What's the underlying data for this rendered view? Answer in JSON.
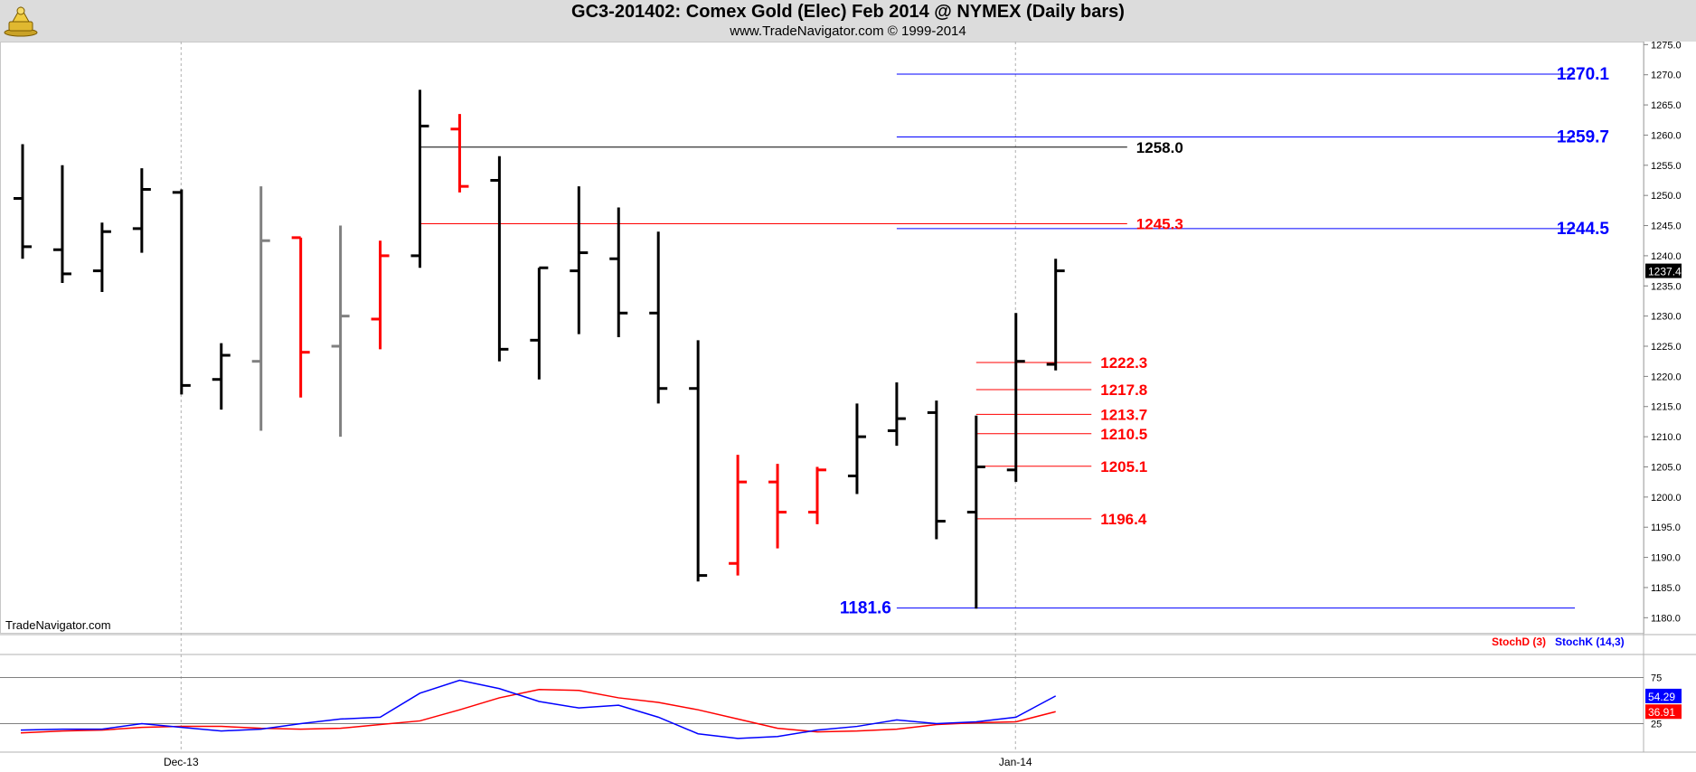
{
  "header": {
    "title": "GC3-201402:  Comex Gold (Elec) Feb 2014 @ NYMEX  (Daily bars)",
    "subtitle": "www.TradeNavigator.com © 1999-2014",
    "watermark": "TradeNavigator.com"
  },
  "chart_data": [
    {
      "type": "ohlc",
      "price_axis": {
        "min": 1177.5,
        "max": 1275.5,
        "ticks": [
          1275.0,
          1270.0,
          1265.0,
          1260.0,
          1255.0,
          1250.0,
          1245.0,
          1240.0,
          1235.0,
          1230.0,
          1225.0,
          1220.0,
          1215.0,
          1210.0,
          1205.0,
          1200.0,
          1195.0,
          1190.0,
          1185.0,
          1180.0
        ]
      },
      "x_axis": {
        "labels": [
          {
            "label": "Dec-13",
            "bar": 4
          },
          {
            "label": "Jan-14",
            "bar": 25
          }
        ],
        "grid": "vertical dashed at month starts"
      },
      "last_price_label": "1237.4",
      "bars": [
        {
          "o": 1249.5,
          "h": 1258.5,
          "l": 1239.5,
          "c": 1241.5,
          "color": "#000000"
        },
        {
          "o": 1241.0,
          "h": 1255.0,
          "l": 1235.5,
          "c": 1237.0,
          "color": "#000000"
        },
        {
          "o": 1237.5,
          "h": 1245.5,
          "l": 1234.0,
          "c": 1244.0,
          "color": "#000000"
        },
        {
          "o": 1244.5,
          "h": 1254.5,
          "l": 1240.5,
          "c": 1251.0,
          "color": "#000000"
        },
        {
          "o": 1250.5,
          "h": 1251.0,
          "l": 1217.0,
          "c": 1218.5,
          "color": "#000000"
        },
        {
          "o": 1219.5,
          "h": 1225.5,
          "l": 1214.5,
          "c": 1223.5,
          "color": "#000000"
        },
        {
          "o": 1222.5,
          "h": 1251.5,
          "l": 1211.0,
          "c": 1242.5,
          "color": "#808080"
        },
        {
          "o": 1243.0,
          "h": 1243.0,
          "l": 1216.5,
          "c": 1224.0,
          "color": "#ff0000"
        },
        {
          "o": 1225.0,
          "h": 1245.0,
          "l": 1210.0,
          "c": 1230.0,
          "color": "#808080"
        },
        {
          "o": 1229.5,
          "h": 1242.5,
          "l": 1224.5,
          "c": 1240.0,
          "color": "#ff0000"
        },
        {
          "o": 1240.0,
          "h": 1267.5,
          "l": 1238.0,
          "c": 1261.5,
          "color": "#000000"
        },
        {
          "o": 1261.0,
          "h": 1263.5,
          "l": 1250.5,
          "c": 1251.5,
          "color": "#ff0000"
        },
        {
          "o": 1252.5,
          "h": 1256.5,
          "l": 1222.5,
          "c": 1224.5,
          "color": "#000000"
        },
        {
          "o": 1226.0,
          "h": 1238.0,
          "l": 1219.5,
          "c": 1238.0,
          "color": "#000000"
        },
        {
          "o": 1237.5,
          "h": 1251.5,
          "l": 1227.0,
          "c": 1240.5,
          "color": "#000000"
        },
        {
          "o": 1239.5,
          "h": 1248.0,
          "l": 1226.5,
          "c": 1230.5,
          "color": "#000000"
        },
        {
          "o": 1230.5,
          "h": 1244.0,
          "l": 1215.5,
          "c": 1218.0,
          "color": "#000000"
        },
        {
          "o": 1218.0,
          "h": 1226.0,
          "l": 1186.0,
          "c": 1187.0,
          "color": "#000000"
        },
        {
          "o": 1189.0,
          "h": 1207.0,
          "l": 1187.0,
          "c": 1202.5,
          "color": "#ff0000"
        },
        {
          "o": 1202.5,
          "h": 1205.5,
          "l": 1191.5,
          "c": 1197.5,
          "color": "#ff0000"
        },
        {
          "o": 1197.5,
          "h": 1205.0,
          "l": 1195.5,
          "c": 1204.5,
          "color": "#ff0000"
        },
        {
          "o": 1203.5,
          "h": 1215.5,
          "l": 1200.5,
          "c": 1210.0,
          "color": "#000000"
        },
        {
          "o": 1211.0,
          "h": 1219.0,
          "l": 1208.5,
          "c": 1213.0,
          "color": "#000000"
        },
        {
          "o": 1214.0,
          "h": 1216.0,
          "l": 1193.0,
          "c": 1196.0,
          "color": "#000000"
        },
        {
          "o": 1197.5,
          "h": 1213.5,
          "l": 1181.5,
          "c": 1205.0,
          "color": "#000000"
        },
        {
          "o": 1204.5,
          "h": 1230.5,
          "l": 1202.5,
          "c": 1222.5,
          "color": "#000000"
        },
        {
          "o": 1222.0,
          "h": 1239.5,
          "l": 1221.0,
          "c": 1237.5,
          "color": "#000000"
        }
      ],
      "levels": [
        {
          "value": 1270.1,
          "label": "1270.1",
          "color": "#0000ff",
          "from_bar": 22,
          "to": "right",
          "label_pos": "right",
          "bold_large": true
        },
        {
          "value": 1259.7,
          "label": "1259.7",
          "color": "#0000ff",
          "from_bar": 22,
          "to": "right",
          "label_pos": "right",
          "bold_large": true
        },
        {
          "value": 1244.5,
          "label": "1244.5",
          "color": "#0000ff",
          "from_bar": 22,
          "to": "right",
          "label_pos": "right",
          "bold_large": true
        },
        {
          "value": 1181.6,
          "label": "1181.6",
          "color": "#0000ff",
          "from_bar": 22,
          "to": "right",
          "label_pos": "left",
          "bold_large": true
        },
        {
          "value": 1258.0,
          "label": "1258.0",
          "color": "#000000",
          "from_bar": 10,
          "to_bar": 27.8,
          "label_pos": "end"
        },
        {
          "value": 1245.3,
          "label": "1245.3",
          "color": "#ff0000",
          "from_bar": 10,
          "to_bar": 27.8,
          "label_pos": "end"
        },
        {
          "value": 1222.3,
          "label": "1222.3",
          "color": "#ff0000",
          "from_bar": 24,
          "to_bar": 26.9,
          "label_pos": "end"
        },
        {
          "value": 1217.8,
          "label": "1217.8",
          "color": "#ff0000",
          "from_bar": 24,
          "to_bar": 26.9,
          "label_pos": "end"
        },
        {
          "value": 1213.7,
          "label": "1213.7",
          "color": "#ff0000",
          "from_bar": 24,
          "to_bar": 26.9,
          "label_pos": "end"
        },
        {
          "value": 1210.5,
          "label": "1210.5",
          "color": "#ff0000",
          "from_bar": 24,
          "to_bar": 26.9,
          "label_pos": "end"
        },
        {
          "value": 1205.1,
          "label": "1205.1",
          "color": "#ff0000",
          "from_bar": 24,
          "to_bar": 26.9,
          "label_pos": "end"
        },
        {
          "value": 1196.4,
          "label": "1196.4",
          "color": "#ff0000",
          "from_bar": 24,
          "to_bar": 26.9,
          "label_pos": "end"
        }
      ]
    },
    {
      "type": "line",
      "indicator": "Stochastic",
      "y_axis": {
        "min": 0,
        "max": 100,
        "ticks": [
          75,
          25
        ]
      },
      "series": [
        {
          "name": "StochD (3)",
          "color": "#ff0000",
          "values": [
            15,
            17,
            18,
            21,
            22,
            22,
            20,
            19,
            20,
            24,
            28,
            40,
            53,
            62,
            61,
            53,
            48,
            40,
            30,
            20,
            16,
            17,
            19,
            24,
            26,
            27,
            38
          ],
          "last_label": "36.91"
        },
        {
          "name": "StochK (14,3)",
          "color": "#0000ff",
          "values": [
            18,
            19,
            19,
            25,
            21,
            17,
            19,
            25,
            30,
            32,
            58,
            72,
            63,
            49,
            42,
            45,
            32,
            14,
            9,
            11,
            18,
            22,
            29,
            25,
            27,
            32,
            55
          ],
          "last_label": "54.29"
        }
      ]
    }
  ]
}
